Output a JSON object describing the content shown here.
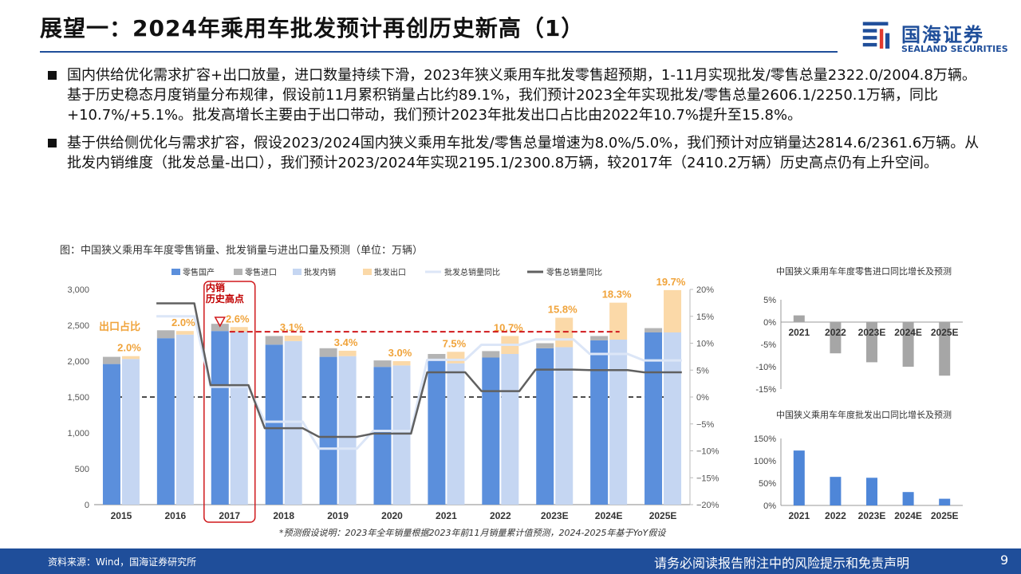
{
  "slide": {
    "title": "展望一：2024年乘用车批发预计再创历史新高（1）",
    "logo_cn": "国海证券",
    "logo_en": "SEALAND SECURITIES",
    "bullets": [
      "国内供给优化需求扩容+出口放量，进口数量持续下滑，2023年狭义乘用车批发零售超预期，1-11月实现批发/零售总量2322.0/2004.8万辆。基于历史稳态月度销量分布规律，假设前11月累积销量占比约89.1%，我们预计2023全年实现批发/零售总量2606.1/2250.1万辆，同比+10.7%/+5.1%。批发高增长主要由于出口带动，我们预计2023年批发出口占比由2022年10.7%提升至15.8%。",
      "基于供给侧优化与需求扩容，假设2023/2024国内狭义乘用车批发/零售总量增速为8.0%/5.0%，我们预计对应销量达2814.6/2361.6万辆。从批发内销维度（批发总量-出口），我们预计2023/2024年实现2195.1/2300.8万辆，较2017年（2410.2万辆）历史高点仍有上升空间。"
    ],
    "chart_caption": "图：中国狭义乘用车年度零售销量、批发销量与进出口量及预测（单位：万辆）",
    "note": "*预测假设说明：2023年全年销量根据2023年前11月销量累计值预测，2024-2025年基于YoY假设",
    "source": "资料来源：Wind，国海证券研究所",
    "disclaimer": "请务必阅读报告附注中的风险提示和免责声明",
    "page": "9"
  },
  "chart_data": [
    {
      "type": "bar",
      "title": "",
      "categories": [
        "2015",
        "2016",
        "2017",
        "2018",
        "2019",
        "2020",
        "2021",
        "2022",
        "2023E",
        "2024E",
        "2025E"
      ],
      "ylim": [
        0,
        3000
      ],
      "yticks": [
        "0",
        "500",
        "1,000",
        "1,500",
        "2,000",
        "2,500",
        "3,000"
      ],
      "y2lim": [
        -20,
        20
      ],
      "y2ticks": [
        "−20%",
        "−15%",
        "−10%",
        "−5%",
        "0%",
        "5%",
        "10%",
        "15%",
        "20%"
      ],
      "series": [
        {
          "name": "零售国产",
          "color": "#5b8fdc",
          "values": [
            1960,
            2320,
            2420,
            2230,
            2060,
            1920,
            2010,
            2050,
            2180,
            2290,
            2400
          ]
        },
        {
          "name": "零售进口",
          "color": "#b4b4b4",
          "values": [
            100,
            110,
            100,
            120,
            120,
            90,
            90,
            90,
            70,
            60,
            60
          ]
        },
        {
          "name": "批发内销",
          "color": "#c5d6f2",
          "values": [
            2030,
            2370,
            2410,
            2280,
            2070,
            1940,
            1970,
            2100,
            2195,
            2300,
            2400
          ]
        },
        {
          "name": "批发出口",
          "color": "#fbd9a8",
          "values": [
            40,
            50,
            65,
            75,
            75,
            60,
            160,
            250,
            410,
            515,
            590
          ]
        },
        {
          "name": "零售总销量同比",
          "color": "#606060",
          "values": [
            null,
            17.4,
            2.2,
            -5.8,
            -7.4,
            -6.8,
            4.6,
            1.1,
            5.1,
            5.0,
            4.6
          ]
        },
        {
          "name": "批发总销量同比",
          "color": "#dce6f7",
          "values": [
            null,
            15.0,
            1.9,
            -4.6,
            -9.6,
            -6.3,
            6.9,
            9.7,
            10.7,
            8.0,
            6.8
          ]
        }
      ],
      "export_share_labels": [
        "2.0%",
        "2.0%",
        "2.6%",
        "3.1%",
        "3.4%",
        "3.0%",
        "7.5%",
        "10.7%",
        "15.8%",
        "18.3%",
        "19.7%"
      ],
      "annotations": [
        "出口占比",
        "内销\n历史高点"
      ]
    },
    {
      "type": "bar",
      "title": "中国狭义乘用车年度零售进口同比增长及预测",
      "categories": [
        "2021",
        "2022",
        "2023E",
        "2024E",
        "2025E"
      ],
      "values": [
        1.5,
        -7.0,
        -9.0,
        -10.0,
        -12.0
      ],
      "ylim": [
        -15,
        5
      ],
      "yticks": [
        "-15%",
        "-10%",
        "-5%",
        "0%",
        "5%"
      ],
      "color": "#a6a6a6"
    },
    {
      "type": "bar",
      "title": "中国狭义乘用车年度批发出口同比增长及预测",
      "categories": [
        "2021",
        "2022",
        "2023E",
        "2024E",
        "2025E"
      ],
      "values": [
        123,
        64,
        62,
        30,
        15
      ],
      "ylim": [
        0,
        150
      ],
      "yticks": [
        "0%",
        "50%",
        "100%",
        "150%"
      ],
      "color": "#4e86d8"
    }
  ]
}
